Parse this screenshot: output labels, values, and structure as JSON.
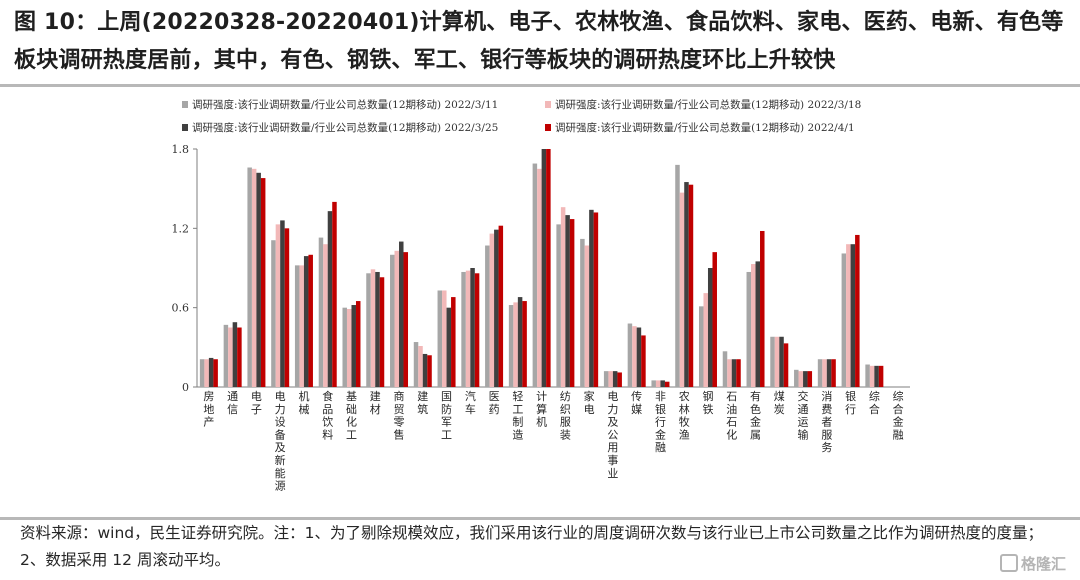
{
  "title": "图 10：上周(20220328-20220401)计算机、电子、农林牧渔、食品饮料、家电、医药、电新、有色等板块调研热度居前，其中，有色、钢铁、军工、银行等板块的调研热度环比上升较快",
  "footer": "资料来源：wind，民生证券研究院。注：1、为了剔除规模效应，我们采用该行业的周度调研次数与该行业已上市公司数量之比作为调研热度的度量；2、数据采用 12 周滚动平均。",
  "watermark": "格隆汇",
  "colors": {
    "series": [
      "#a6a6a6",
      "#f2b8b8",
      "#404040",
      "#c00000"
    ],
    "axis": "#7f7f7f"
  },
  "chart_data": {
    "type": "bar",
    "ylim": [
      0,
      1.8
    ],
    "yticks": [
      "0",
      "0.6",
      "1.2",
      "1.8"
    ],
    "grid": false,
    "legend_position": "top",
    "categories": [
      "房地产",
      "通信",
      "电子",
      "电力设备及新能源",
      "机械",
      "食品饮料",
      "基础化工",
      "建材",
      "商贸零售",
      "建筑",
      "国防军工",
      "汽车",
      "医药",
      "轻工制造",
      "计算机",
      "纺织服装",
      "家电",
      "电力及公用事业",
      "传媒",
      "非银行金融",
      "农林牧渔",
      "钢铁",
      "石油石化",
      "有色金属",
      "煤炭",
      "交通运输",
      "消费者服务",
      "银行",
      "综合",
      "综合金融"
    ],
    "series": [
      {
        "name": "调研强度:该行业调研数量/行业公司总数量(12期移动) 2022/3/11",
        "values": [
          0.21,
          0.47,
          1.66,
          1.11,
          0.92,
          1.13,
          0.6,
          0.86,
          1.0,
          0.34,
          0.73,
          0.87,
          1.07,
          0.62,
          1.69,
          1.23,
          1.12,
          0.12,
          0.48,
          0.05,
          1.68,
          0.61,
          0.27,
          0.87,
          0.38,
          0.13,
          0.21,
          1.01,
          0.17,
          0.0
        ]
      },
      {
        "name": "调研强度:该行业调研数量/行业公司总数量(12期移动) 2022/3/18",
        "values": [
          0.21,
          0.45,
          1.65,
          1.23,
          0.92,
          1.08,
          0.59,
          0.89,
          1.03,
          0.31,
          0.73,
          0.88,
          1.16,
          0.64,
          1.65,
          1.36,
          1.07,
          0.12,
          0.46,
          0.05,
          1.47,
          0.71,
          0.21,
          0.93,
          0.38,
          0.12,
          0.21,
          1.08,
          0.16,
          0.0
        ]
      },
      {
        "name": "调研强度:该行业调研数量/行业公司总数量(12期移动) 2022/3/25",
        "values": [
          0.22,
          0.49,
          1.62,
          1.26,
          0.99,
          1.33,
          0.62,
          0.87,
          1.1,
          0.25,
          0.6,
          0.9,
          1.19,
          0.68,
          1.8,
          1.3,
          1.34,
          0.12,
          0.45,
          0.05,
          1.55,
          0.9,
          0.21,
          0.95,
          0.38,
          0.12,
          0.21,
          1.08,
          0.16,
          0.0
        ]
      },
      {
        "name": "调研强度:该行业调研数量/行业公司总数量(12期移动) 2022/4/1",
        "values": [
          0.21,
          0.45,
          1.58,
          1.2,
          1.0,
          1.4,
          0.65,
          0.83,
          1.02,
          0.24,
          0.68,
          0.86,
          1.22,
          0.65,
          1.8,
          1.27,
          1.32,
          0.11,
          0.39,
          0.04,
          1.53,
          1.02,
          0.21,
          1.18,
          0.33,
          0.12,
          0.21,
          1.15,
          0.16,
          0.0
        ]
      }
    ]
  }
}
